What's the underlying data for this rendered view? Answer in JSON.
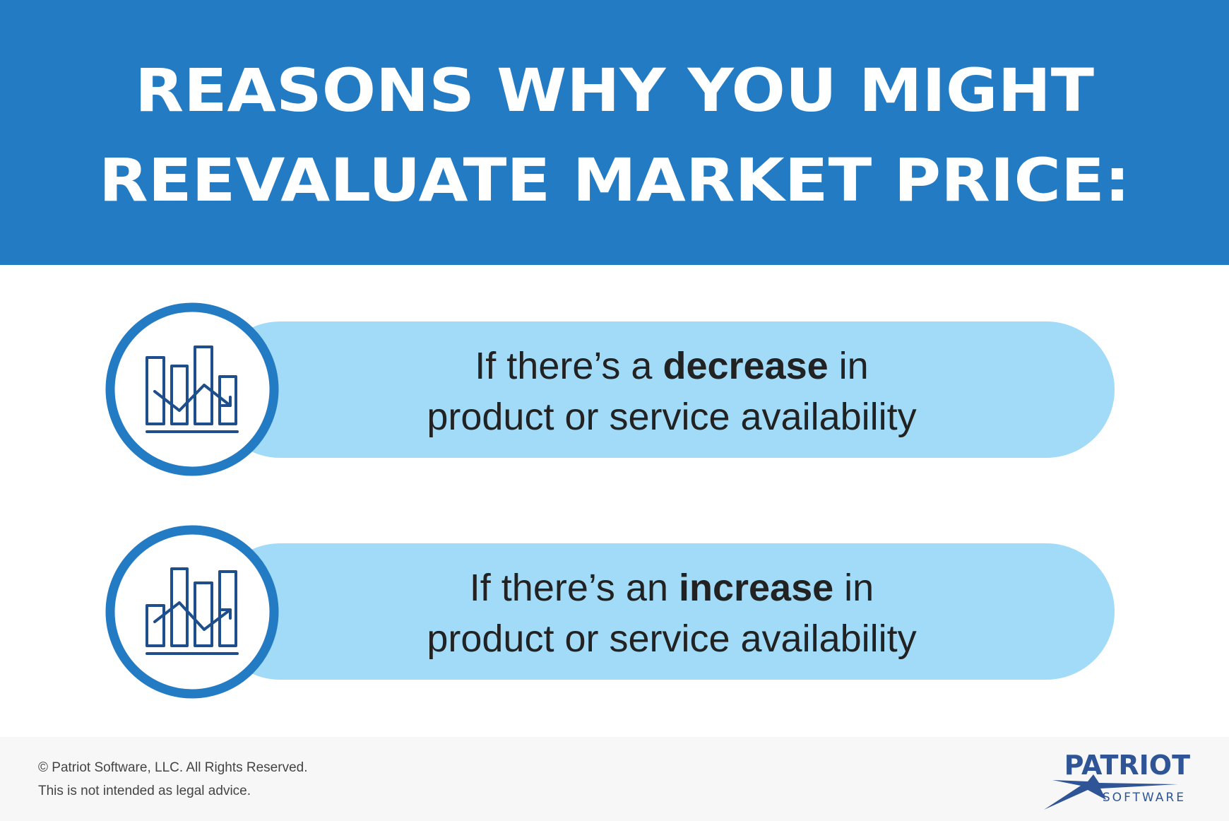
{
  "header": {
    "title_lines": [
      "REASONS WHY YOU MIGHT",
      "REEVALUATE MARKET PRICE:"
    ]
  },
  "items": [
    {
      "line1_start": "If there’s a ",
      "line1_bold": "decrease",
      "line1_end": " in",
      "line2": "product or service availability"
    },
    {
      "line1_start": "If there’s an ",
      "line1_bold": "increase",
      "line1_end": " in",
      "line2": "product or service availability"
    }
  ],
  "footer": {
    "copyright": "© Patriot Software, LLC. All Rights Reserved.",
    "disclaimer": "This is not intended as legal advice.",
    "logo": {
      "name": "PATRIOT",
      "sub": "SOFTWARE"
    }
  }
}
